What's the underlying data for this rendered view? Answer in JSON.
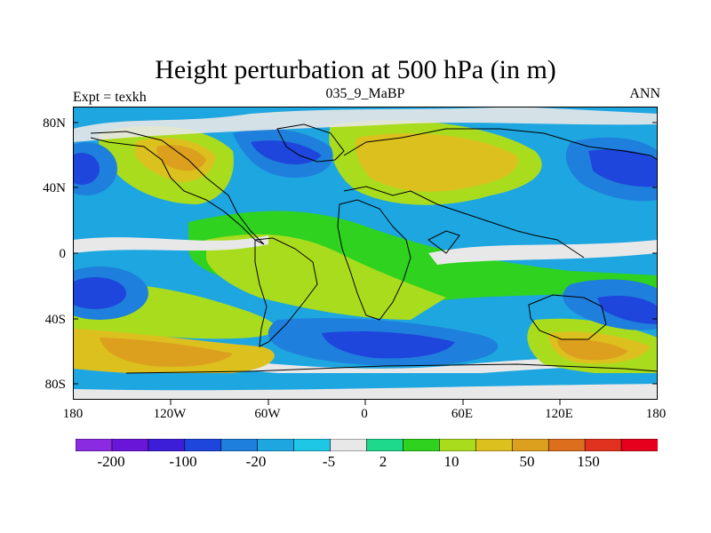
{
  "title": "Height perturbation at 500 hPa (in m)",
  "left_label": "Expt = texkh",
  "center_label": "035_9_MaBP",
  "right_label": "ANN",
  "map": {
    "type": "filled-contour-map",
    "projection": "cylindrical-equidistant",
    "x_ticks": [
      "180",
      "120W",
      "60W",
      "0",
      "60E",
      "120E",
      "180"
    ],
    "y_ticks": [
      "80N",
      "40N",
      "0",
      "40S",
      "80S"
    ],
    "lon_range": [
      -180,
      180
    ],
    "lat_range": [
      -90,
      90
    ]
  },
  "colorbar": {
    "colors": [
      "#8a2be2",
      "#6a16d8",
      "#3c1ed8",
      "#1e46dc",
      "#1f7fdc",
      "#1ea6e0",
      "#1fc7e6",
      "#e8e8e8",
      "#1ed88c",
      "#2fd21e",
      "#aadc1e",
      "#dcc01e",
      "#dca01e",
      "#dc6e1e",
      "#e0321e",
      "#e6001e"
    ],
    "labels": [
      "-200",
      "-100",
      "-20",
      "-5",
      "2",
      "10",
      "50",
      "150"
    ]
  },
  "chart_data": {
    "type": "heatmap",
    "title": "Height perturbation at 500 hPa (in m)",
    "subtitle": "035_9_MaBP",
    "annotations": [
      "Expt = texkh",
      "ANN"
    ],
    "xlim": [
      -180,
      180
    ],
    "ylim": [
      -90,
      90
    ],
    "color_levels": [
      -200,
      -100,
      -20,
      -5,
      2,
      10,
      50,
      150
    ],
    "regions": [
      {
        "lon": -160,
        "lat": 45,
        "value": -30
      },
      {
        "lon": -110,
        "lat": 55,
        "value": 60
      },
      {
        "lon": -60,
        "lat": 55,
        "value": -20
      },
      {
        "lon": 40,
        "lat": 55,
        "value": 40
      },
      {
        "lon": 150,
        "lat": 50,
        "value": -30
      },
      {
        "lon": -60,
        "lat": -40,
        "value": 30
      },
      {
        "lon": -10,
        "lat": -60,
        "value": -30
      },
      {
        "lon": 130,
        "lat": -55,
        "value": 60
      },
      {
        "lon": 150,
        "lat": -35,
        "value": -30
      }
    ]
  }
}
